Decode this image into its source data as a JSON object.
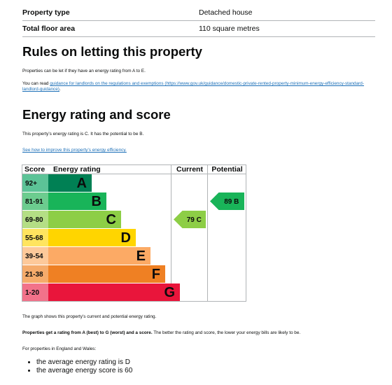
{
  "summary": {
    "rows": [
      {
        "label": "Property type",
        "value": "Detached house"
      },
      {
        "label": "Total floor area",
        "value": "110 square metres"
      }
    ]
  },
  "letting": {
    "heading": "Rules on letting this property",
    "intro": "Properties can be let if they have an energy rating from A to E.",
    "guidance_prefix": "You can read ",
    "guidance_link": "guidance for landlords on the regulations and exemptions",
    "guidance_url_text": "(https://www.gov.uk/guidance/domestic-private-rented-property-minimum-energy-efficiency-standard-landlord-guidance)",
    "guidance_suffix": "."
  },
  "energy": {
    "heading": "Energy rating and score",
    "summary_text": "This property’s energy rating is C. It has the potential to be B.",
    "improve_link": "See how to improve this property’s energy efficiency.",
    "graph_caption": "The graph shows this property’s current and potential energy rating.",
    "rating_bold": "Properties get a rating from A (best) to G (worst) and a score.",
    "rating_rest": " The better the rating and score, the lower your energy bills are likely to be.",
    "england_wales": "For properties in England and Wales:",
    "averages": [
      "the average energy rating is D",
      "the average energy score is 60"
    ]
  },
  "chart_data": {
    "type": "bar",
    "headers": {
      "score": "Score",
      "rating": "Energy rating",
      "current": "Current",
      "potential": "Potential"
    },
    "bands": [
      {
        "score": "92+",
        "letter": "A",
        "color": "#008054",
        "score_bg": "#5cc397"
      },
      {
        "score": "81-91",
        "letter": "B",
        "color": "#19b459",
        "score_bg": "#6ccc8f"
      },
      {
        "score": "69-80",
        "letter": "C",
        "color": "#8dce46",
        "score_bg": "#b4de85"
      },
      {
        "score": "55-68",
        "letter": "D",
        "color": "#ffd500",
        "score_bg": "#ffe45f"
      },
      {
        "score": "39-54",
        "letter": "E",
        "color": "#fcaa65",
        "score_bg": "#fdc99a"
      },
      {
        "score": "21-38",
        "letter": "F",
        "color": "#ef8023",
        "score_bg": "#f5ab6b"
      },
      {
        "score": "1-20",
        "letter": "G",
        "color": "#e9153b",
        "score_bg": "#f2728a"
      }
    ],
    "current": {
      "label": "79 C",
      "score": 79,
      "band": "C"
    },
    "potential": {
      "label": "89 B",
      "score": 89,
      "band": "B"
    }
  }
}
